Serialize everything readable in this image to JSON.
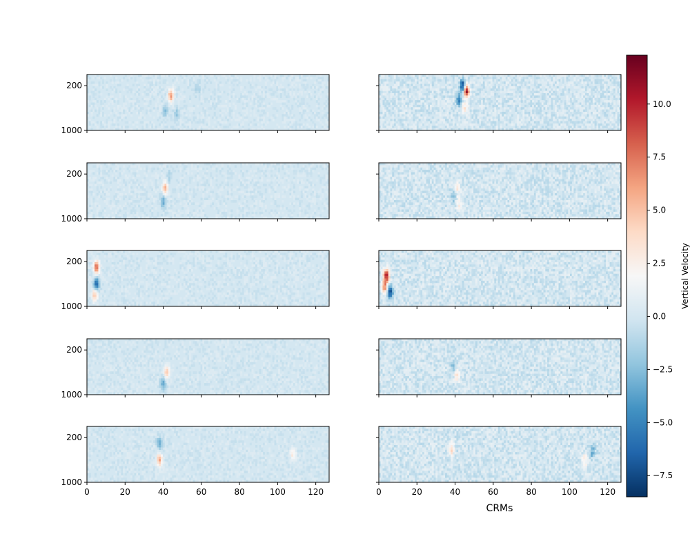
{
  "chart_data": {
    "type": "heatmap",
    "grid": {
      "rows": 5,
      "cols": 2
    },
    "x": {
      "range": [
        0,
        127
      ],
      "ticks": [
        0,
        20,
        40,
        60,
        80,
        100,
        120
      ],
      "tick_labels": [
        "0",
        "20",
        "40",
        "60",
        "80",
        "100",
        "120"
      ]
    },
    "y": {
      "range": [
        1000,
        0
      ],
      "ticks": [
        200,
        1000
      ],
      "tick_labels": [
        "200",
        "1000"
      ],
      "inverted": true
    },
    "xlabel": "CRMs",
    "colorbar": {
      "label": "Vertical Velocity",
      "range": [
        -8.5,
        12.3
      ],
      "ticks": [
        -7.5,
        -5.0,
        -2.5,
        0.0,
        2.5,
        5.0,
        7.5,
        10.0
      ],
      "tick_labels": [
        "−7.5",
        "−5.0",
        "−2.5",
        "0.0",
        "2.5",
        "5.0",
        "7.5",
        "10.0"
      ],
      "colormap": "RdBu_r",
      "colors": [
        "#053061",
        "#2166ac",
        "#4393c3",
        "#92c5de",
        "#d1e5f0",
        "#f7f7f7",
        "#fddbc7",
        "#f4a582",
        "#d6604d",
        "#b2182b",
        "#67001f"
      ]
    },
    "panels": [
      {
        "row": 0,
        "col": 0,
        "hotspots": [
          {
            "x": 44,
            "y": 380,
            "value": 6.5
          },
          {
            "x": 41,
            "y": 650,
            "value": -2.5
          },
          {
            "x": 47,
            "y": 700,
            "value": -2.0
          },
          {
            "x": 58,
            "y": 250,
            "value": -1.5
          }
        ]
      },
      {
        "row": 0,
        "col": 1,
        "hotspots": [
          {
            "x": 44,
            "y": 200,
            "value": -8.0
          },
          {
            "x": 46,
            "y": 300,
            "value": 11.0
          },
          {
            "x": 42,
            "y": 450,
            "value": -5.0
          },
          {
            "x": 45,
            "y": 600,
            "value": 3.0
          }
        ]
      },
      {
        "row": 1,
        "col": 0,
        "hotspots": [
          {
            "x": 41,
            "y": 450,
            "value": 5.5
          },
          {
            "x": 40,
            "y": 700,
            "value": -3.5
          },
          {
            "x": 43,
            "y": 250,
            "value": -1.5
          }
        ]
      },
      {
        "row": 1,
        "col": 1,
        "hotspots": [
          {
            "x": 41,
            "y": 450,
            "value": 3.5
          },
          {
            "x": 39,
            "y": 600,
            "value": -2.5
          },
          {
            "x": 42,
            "y": 720,
            "value": 2.5
          }
        ]
      },
      {
        "row": 2,
        "col": 0,
        "hotspots": [
          {
            "x": 5,
            "y": 300,
            "value": 8.5
          },
          {
            "x": 5,
            "y": 600,
            "value": -6.5
          },
          {
            "x": 4,
            "y": 800,
            "value": 5.0
          }
        ]
      },
      {
        "row": 2,
        "col": 1,
        "hotspots": [
          {
            "x": 4,
            "y": 450,
            "value": 11.5
          },
          {
            "x": 6,
            "y": 750,
            "value": -7.5
          },
          {
            "x": 3,
            "y": 650,
            "value": 7.0
          }
        ]
      },
      {
        "row": 3,
        "col": 0,
        "hotspots": [
          {
            "x": 42,
            "y": 600,
            "value": 5.0
          },
          {
            "x": 40,
            "y": 800,
            "value": -3.5
          }
        ]
      },
      {
        "row": 3,
        "col": 1,
        "hotspots": [
          {
            "x": 41,
            "y": 650,
            "value": 4.0
          },
          {
            "x": 39,
            "y": 500,
            "value": -2.5
          }
        ]
      },
      {
        "row": 4,
        "col": 0,
        "hotspots": [
          {
            "x": 38,
            "y": 600,
            "value": 6.0
          },
          {
            "x": 38,
            "y": 300,
            "value": -3.0
          },
          {
            "x": 108,
            "y": 500,
            "value": 3.0
          }
        ]
      },
      {
        "row": 4,
        "col": 1,
        "hotspots": [
          {
            "x": 38,
            "y": 400,
            "value": 4.0
          },
          {
            "x": 108,
            "y": 600,
            "value": 3.0
          },
          {
            "x": 112,
            "y": 450,
            "value": -3.5
          }
        ]
      }
    ]
  }
}
